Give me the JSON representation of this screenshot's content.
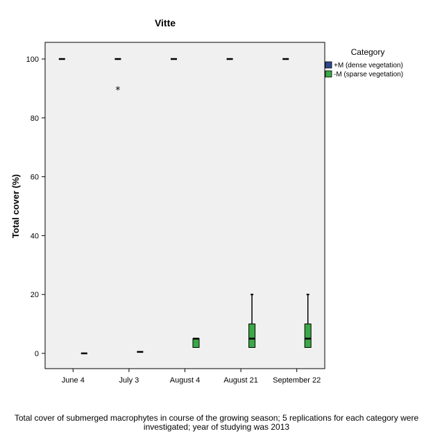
{
  "chart_data": {
    "type": "boxplot",
    "title": "Vitte",
    "xlabel": "",
    "ylabel": "Total cover (%)",
    "ylim": [
      -5,
      105
    ],
    "yticks": [
      0,
      20,
      40,
      60,
      80,
      100
    ],
    "categories": [
      "June 4",
      "July 3",
      "August 4",
      "August 21",
      "September 22"
    ],
    "grid": false,
    "legend": {
      "title": "Category",
      "position": "right"
    },
    "series": [
      {
        "name": "+M (dense vegetation)",
        "color": "#2e4a8e",
        "boxes": [
          {
            "min": 100,
            "q1": 100,
            "median": 100,
            "q3": 100,
            "max": 100,
            "outliers": []
          },
          {
            "min": 100,
            "q1": 100,
            "median": 100,
            "q3": 100,
            "max": 100,
            "outliers": [
              90
            ]
          },
          {
            "min": 100,
            "q1": 100,
            "median": 100,
            "q3": 100,
            "max": 100,
            "outliers": []
          },
          {
            "min": 100,
            "q1": 100,
            "median": 100,
            "q3": 100,
            "max": 100,
            "outliers": []
          },
          {
            "min": 100,
            "q1": 100,
            "median": 100,
            "q3": 100,
            "max": 100,
            "outliers": []
          }
        ]
      },
      {
        "name": "-M (sparse vegetation)",
        "color": "#3aa844",
        "boxes": [
          {
            "min": 0,
            "q1": 0,
            "median": 0,
            "q3": 0,
            "max": 0,
            "outliers": []
          },
          {
            "min": 0.5,
            "q1": 0.5,
            "median": 0.5,
            "q3": 0.5,
            "max": 0.5,
            "outliers": []
          },
          {
            "min": 2,
            "q1": 2,
            "median": 5,
            "q3": 5,
            "max": 5,
            "outliers": []
          },
          {
            "min": 2,
            "q1": 2,
            "median": 5,
            "q3": 10,
            "max": 20,
            "outliers": []
          },
          {
            "min": 2,
            "q1": 2,
            "median": 5,
            "q3": 10,
            "max": 20,
            "outliers": []
          }
        ]
      }
    ]
  },
  "caption": "Total cover of submerged macrophytes in course of the growing season; 5 replications for each category were investigated; year of studying was 2013"
}
